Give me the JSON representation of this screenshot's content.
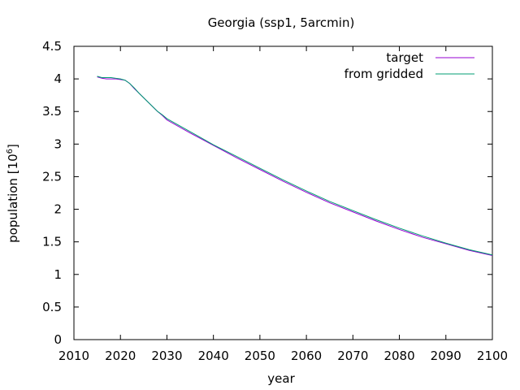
{
  "chart_data": {
    "type": "line",
    "title": "Georgia (ssp1, 5arcmin)",
    "xlabel": "year",
    "ylabel": "population [10",
    "ylabel_sup": "6",
    "ylabel_close": "]",
    "xlim": [
      2010,
      2100
    ],
    "ylim": [
      0,
      4.5
    ],
    "x_ticks": [
      2010,
      2020,
      2030,
      2040,
      2050,
      2060,
      2070,
      2080,
      2090,
      2100
    ],
    "x_tick_labels": [
      "2010",
      "2020",
      "2030",
      "2040",
      "2050",
      "2060",
      "2070",
      "2080",
      "2090",
      "2100"
    ],
    "y_ticks": [
      0,
      0.5,
      1,
      1.5,
      2,
      2.5,
      3,
      3.5,
      4,
      4.5
    ],
    "y_tick_labels": [
      "0",
      "0.5",
      "1",
      "1.5",
      "2",
      "2.5",
      "3",
      "3.5",
      "4",
      "4.5"
    ],
    "grid": false,
    "legend_position": "top-right",
    "series": [
      {
        "name": "target",
        "color": "#9400d3",
        "x": [
          2015,
          2016,
          2017,
          2018,
          2019,
          2020,
          2021,
          2022,
          2023,
          2024,
          2025,
          2026,
          2027,
          2028,
          2029,
          2030,
          2035,
          2040,
          2045,
          2050,
          2055,
          2060,
          2065,
          2070,
          2075,
          2080,
          2085,
          2090,
          2095,
          2100
        ],
        "values": [
          4.03,
          4.01,
          4.0,
          4.0,
          4.0,
          3.99,
          3.98,
          3.93,
          3.85,
          3.78,
          3.71,
          3.64,
          3.57,
          3.5,
          3.44,
          3.37,
          3.17,
          2.98,
          2.79,
          2.61,
          2.43,
          2.26,
          2.1,
          1.96,
          1.82,
          1.69,
          1.57,
          1.47,
          1.37,
          1.29
        ]
      },
      {
        "name": "from gridded",
        "color": "#009e73",
        "x": [
          2015,
          2016,
          2017,
          2018,
          2019,
          2020,
          2021,
          2022,
          2023,
          2024,
          2025,
          2026,
          2027,
          2028,
          2029,
          2030,
          2035,
          2040,
          2045,
          2050,
          2055,
          2060,
          2065,
          2070,
          2075,
          2080,
          2085,
          2090,
          2095,
          2100
        ],
        "values": [
          4.04,
          4.02,
          4.02,
          4.02,
          4.01,
          4.0,
          3.98,
          3.93,
          3.86,
          3.78,
          3.71,
          3.64,
          3.57,
          3.5,
          3.45,
          3.39,
          3.19,
          2.99,
          2.81,
          2.63,
          2.45,
          2.28,
          2.12,
          1.98,
          1.84,
          1.71,
          1.59,
          1.48,
          1.38,
          1.3
        ]
      }
    ]
  }
}
